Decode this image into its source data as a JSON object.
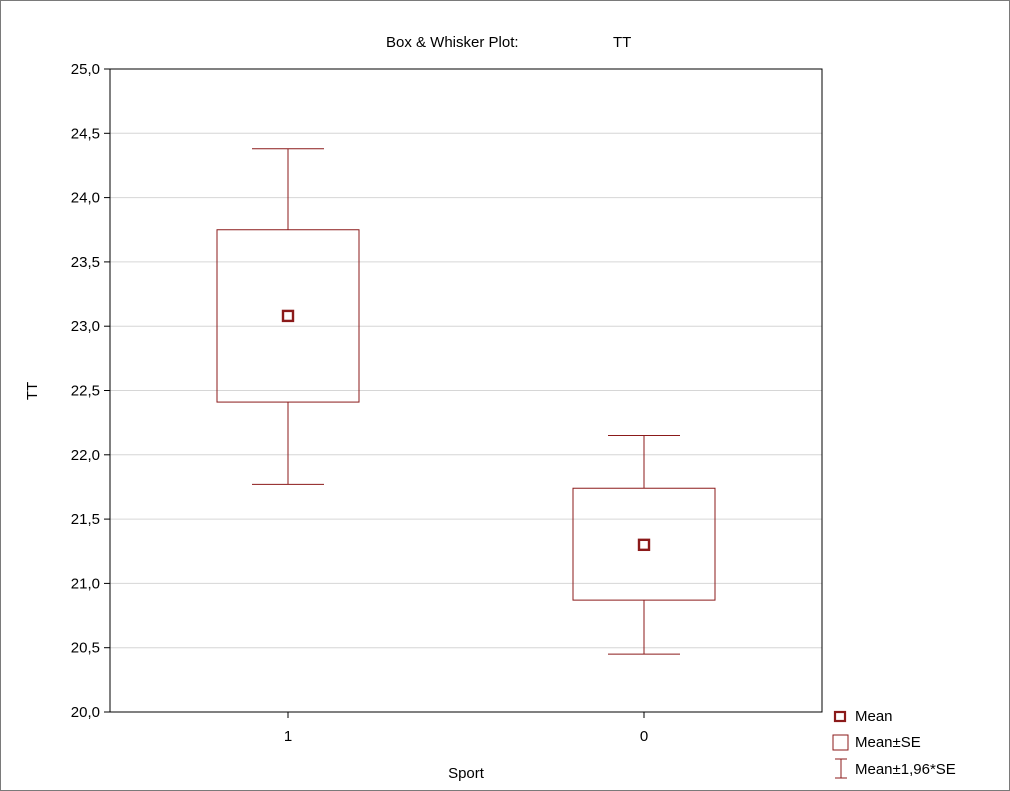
{
  "chart_data": {
    "type": "box",
    "title": "Box & Whisker Plot:",
    "variable": "TT",
    "xlabel": "Sport",
    "ylabel": "TT",
    "categories": [
      "1",
      "0"
    ],
    "ylim": [
      20.0,
      25.0
    ],
    "yticks": [
      "20,0",
      "20,5",
      "21,0",
      "21,5",
      "22,0",
      "22,5",
      "23,0",
      "23,5",
      "24,0",
      "24,5",
      "25,0"
    ],
    "grid": true,
    "legend_position": "bottom-right",
    "series": [
      {
        "category": "1",
        "mean": 23.08,
        "se_low": 22.41,
        "se_high": 23.75,
        "ci_low": 21.77,
        "ci_high": 24.38
      },
      {
        "category": "0",
        "mean": 21.3,
        "se_low": 20.87,
        "se_high": 21.74,
        "ci_low": 20.45,
        "ci_high": 22.15
      }
    ],
    "legend": {
      "mean": "Mean",
      "se": "Mean±SE",
      "ci": "Mean±1,96*SE"
    },
    "colors": {
      "box": "#8b1a1a",
      "grid": "#d6d6d6",
      "frame": "#000000"
    }
  }
}
